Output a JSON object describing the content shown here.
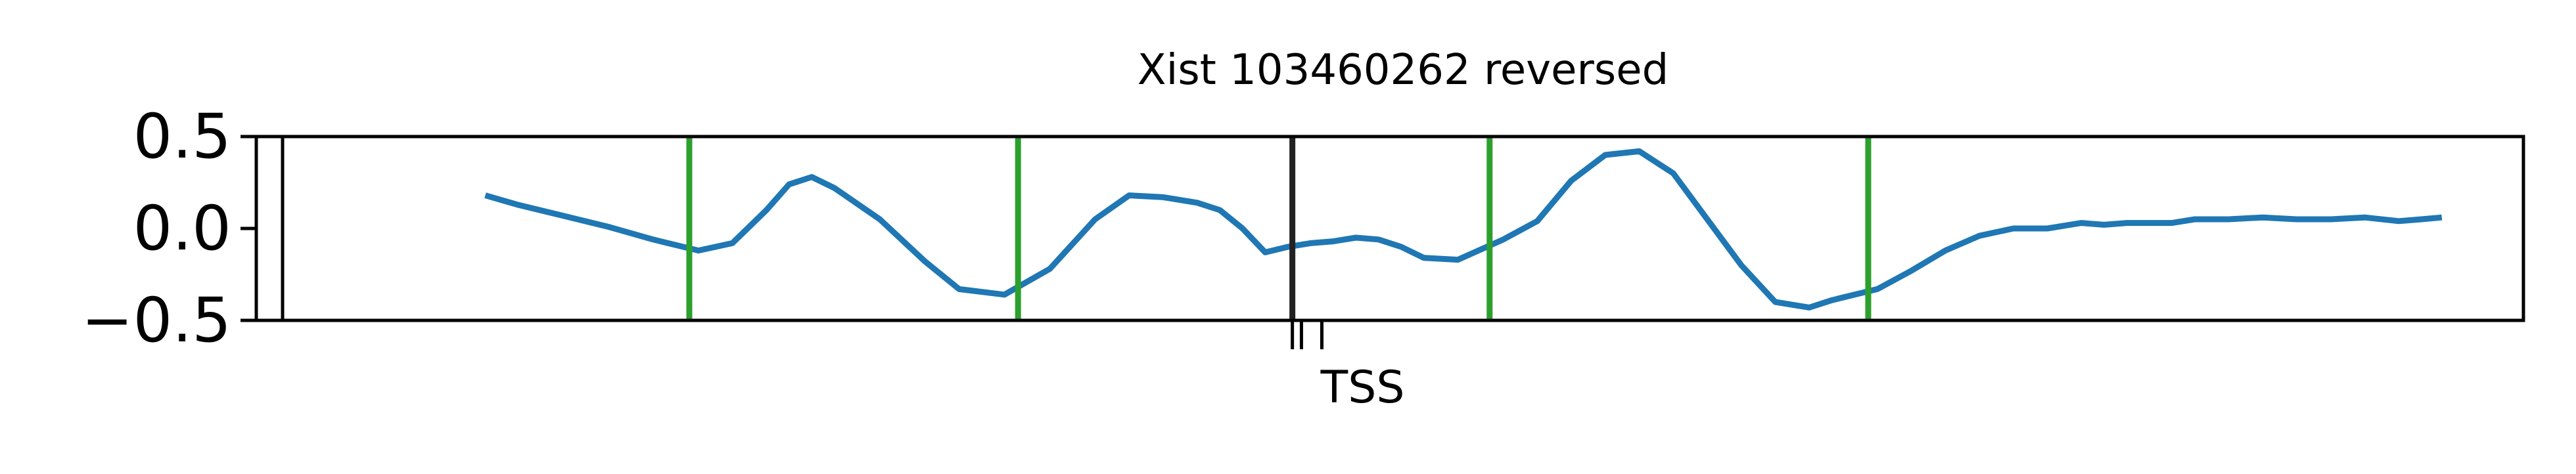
{
  "chart_data": {
    "type": "line",
    "title": "Xist 103460262 reversed",
    "xlabel": "",
    "ylabel": "",
    "ylim": [
      -0.5,
      0.5
    ],
    "xlim": [
      0,
      100
    ],
    "yticks": [
      0.5,
      0.0,
      -0.5
    ],
    "ytick_labels": [
      "0.5",
      "0.0",
      "−0.5"
    ],
    "grid": false,
    "series": [
      {
        "color": "#1f77b4",
        "x": [
          10.1,
          11.5,
          13.5,
          15.5,
          17.5,
          19.5,
          21,
          22.5,
          23.5,
          24.5,
          25.5,
          27.5,
          29.5,
          31,
          33,
          35,
          37,
          38.5,
          40,
          41.5,
          42.5,
          43.5,
          44.5,
          45.5,
          46.5,
          47.5,
          48.5,
          49.5,
          50.5,
          51.5,
          53,
          55,
          56.5,
          58,
          59.5,
          61,
          62.5,
          64,
          65.5,
          67,
          68.5,
          69.5,
          70.5,
          71.5,
          73,
          74.5,
          76,
          77.5,
          79,
          80.5,
          81.5,
          82.5,
          83.5,
          84.5,
          85.5,
          87,
          88.5,
          90,
          91.5,
          93,
          94.5,
          95.5,
          96.4
        ],
        "y": [
          0.18,
          0.13,
          0.07,
          0.01,
          -0.06,
          -0.12,
          -0.08,
          0.1,
          0.24,
          0.28,
          0.22,
          0.05,
          -0.18,
          -0.33,
          -0.36,
          -0.22,
          0.05,
          0.18,
          0.17,
          0.14,
          0.1,
          0.0,
          -0.13,
          -0.1,
          -0.08,
          -0.07,
          -0.05,
          -0.06,
          -0.1,
          -0.16,
          -0.17,
          -0.06,
          0.04,
          0.26,
          0.4,
          0.42,
          0.3,
          0.05,
          -0.2,
          -0.4,
          -0.43,
          -0.39,
          -0.36,
          -0.33,
          -0.23,
          -0.12,
          -0.04,
          0.0,
          0.0,
          0.03,
          0.02,
          0.03,
          0.03,
          0.03,
          0.05,
          0.05,
          0.06,
          0.05,
          0.05,
          0.06,
          0.04,
          0.05,
          0.06
        ]
      }
    ],
    "markers": [
      {
        "kind": "green-line",
        "x": 19.1,
        "color": "#2ca02c"
      },
      {
        "kind": "green-line",
        "x": 33.6,
        "color": "#2ca02c"
      },
      {
        "kind": "black-line",
        "x": 45.7,
        "color": "#222222"
      },
      {
        "kind": "green-line",
        "x": 54.4,
        "color": "#2ca02c"
      },
      {
        "kind": "green-line",
        "x": 71.1,
        "color": "#2ca02c"
      }
    ],
    "xtick_marks": [
      45.7,
      46.1,
      47.0
    ],
    "xtick_labels": [
      {
        "x": 48.8,
        "text": "TSS"
      }
    ],
    "boundary_marks": [
      0.0,
      100.0
    ]
  }
}
